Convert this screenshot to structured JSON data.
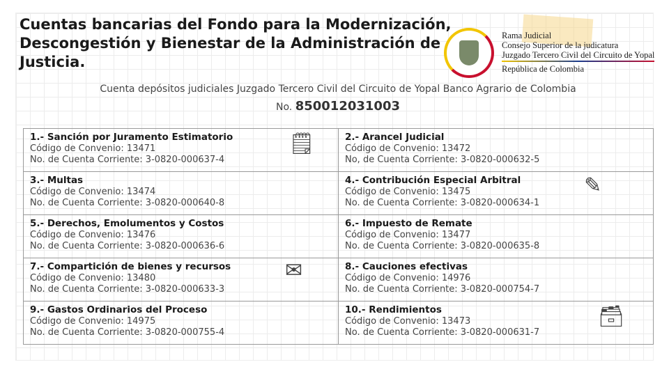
{
  "title": "Cuentas bancarias del Fondo para la Modernización, Descongestión y Bienestar de la Administración de Justicia.",
  "org": {
    "line1": "Rama Judicial",
    "line2": "Consejo Superior de la judicatura",
    "line3": "Juzgado Tercero Civil del Circuito de Yopal",
    "line4": "República de Colombia"
  },
  "subtitle": "Cuenta depósitos judiciales  Juzgado Tercero Civil del Circuito de Yopal Banco Agrario de Colombia",
  "account_prefix": "No.",
  "account_number": "850012031003",
  "accounts": [
    {
      "name": "1.- Sanción por  Juramento Estimatorio",
      "code": "Código de Convenio: 13471",
      "account": "No. de Cuenta Corriente: 3-0820-000637-4"
    },
    {
      "name": "2.- Arancel Judicial",
      "code": "Código de Convenio: 13472",
      "account": "No, de Cuenta Corriente: 3-0820-000632-5"
    },
    {
      "name": "3.- Multas",
      "code": "Código de Convenio: 13474",
      "account": "No. de Cuenta Corriente: 3-0820-000640-8"
    },
    {
      "name": "4.- Contribución Especial Arbitral",
      "code": "Código de Convenio: 13475",
      "account": "No. de Cuenta Corriente: 3-0820-000634-1"
    },
    {
      "name": "5.- Derechos, Emolumentos y Costos",
      "code": "Código de Convenio: 13476",
      "account": "No. de Cuenta Corriente: 3-0820-000636-6"
    },
    {
      "name": "6.- Impuesto de Remate",
      "code": "Código de Convenio: 13477",
      "account": "No. de Cuenta Corriente: 3-0820-000635-8"
    },
    {
      "name": "7.- Compartición de bienes y recursos",
      "code": "Código de Convenio: 13480",
      "account": "No. de Cuenta Corriente: 3-0820-000633-3"
    },
    {
      "name": "8.- Cauciones efectivas",
      "code": "Código de Convenio: 14976",
      "account": "No. de Cuenta Corriente: 3-0820-000754-7"
    },
    {
      "name": "9.- Gastos Ordinarios del Proceso",
      "code": "Código de Convenio: 14975",
      "account": "No. de Cuenta Corriente: 3-0820-000755-4"
    },
    {
      "name": "10.- Rendimientos",
      "code": "Código de Convenio: 13473",
      "account": "No. de Cuenta Corriente: 3-0820-000631-7"
    }
  ],
  "icons": [
    "sticky-note-icon",
    "pen-icon",
    "envelope-icon",
    "inbox-tray-icon"
  ]
}
